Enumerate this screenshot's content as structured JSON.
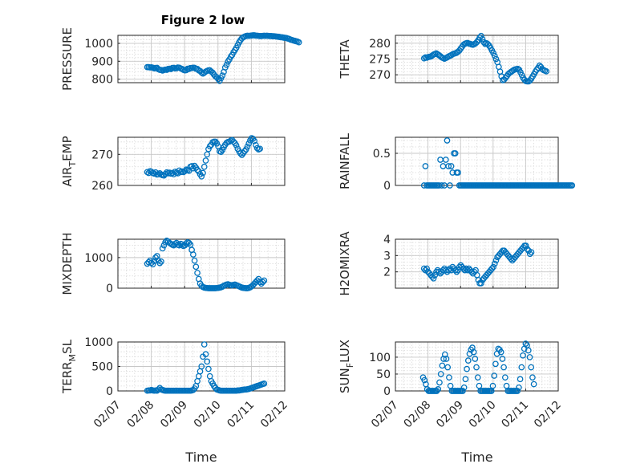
{
  "figure": {
    "title": "Figure 2 low",
    "xlabel": "Time",
    "x_ticks": [
      "02/07",
      "02/08",
      "02/09",
      "02/10",
      "02/11",
      "02/12"
    ],
    "marker_color": "#0072BD"
  },
  "chart_data": [
    {
      "type": "scatter",
      "name": "PRESSURE",
      "ylabel_main": "PRESSURE",
      "ylabel_sub": "",
      "ylim": [
        780,
        1045
      ],
      "yticks": [
        800,
        900,
        1000
      ],
      "grid": true,
      "minor_grid": true,
      "x_start_day": 0.88,
      "x_step_day": 0.0417,
      "values": [
        867,
        867,
        865,
        866,
        864,
        860,
        862,
        863,
        855,
        852,
        851,
        848,
        851,
        853,
        852,
        857,
        858,
        856,
        862,
        863,
        860,
        861,
        865,
        864,
        860,
        857,
        852,
        849,
        850,
        858,
        857,
        862,
        862,
        864,
        863,
        858,
        857,
        849,
        845,
        837,
        831,
        836,
        842,
        846,
        849,
        849,
        842,
        836,
        825,
        815,
        810,
        800,
        790,
        805,
        820,
        840,
        865,
        880,
        898,
        910,
        925,
        935,
        950,
        962,
        975,
        990,
        1005,
        1018,
        1028,
        1034,
        1038,
        1041,
        1043,
        1042,
        1043,
        1044,
        1045,
        1045,
        1043,
        1043,
        1042,
        1041,
        1041,
        1042,
        1043,
        1042,
        1043,
        1042,
        1041,
        1041,
        1040,
        1040,
        1039,
        1038,
        1037,
        1036,
        1034,
        1034,
        1032,
        1031,
        1030,
        1027,
        1025,
        1021,
        1019,
        1016,
        1014,
        1012,
        1010,
        1006
      ]
    },
    {
      "type": "scatter",
      "name": "THETA",
      "ylabel_main": "THETA",
      "ylabel_sub": "",
      "ylim": [
        267.5,
        282.5
      ],
      "yticks": [
        270,
        275,
        280
      ],
      "grid": true,
      "minor_grid": true,
      "x_start_day": 0.88,
      "x_step_day": 0.0417,
      "values": [
        275.2,
        275.5,
        275.4,
        275.6,
        275.7,
        275.8,
        276.1,
        276.4,
        276.6,
        276.8,
        276.5,
        276.2,
        275.9,
        275.5,
        275.3,
        275.1,
        275.3,
        275.5,
        275.8,
        276.0,
        276.2,
        276.5,
        276.7,
        276.8,
        277.0,
        277.3,
        277.7,
        278.3,
        278.9,
        279.5,
        279.8,
        280.0,
        280.1,
        279.9,
        279.8,
        279.6,
        279.5,
        279.7,
        280.0,
        280.4,
        281.0,
        281.8,
        282.3,
        281.3,
        280.3,
        279.8,
        280.0,
        279.7,
        279.2,
        278.5,
        277.7,
        276.9,
        276.0,
        275.0,
        274.0,
        272.5,
        271.0,
        269.5,
        268.3,
        268.5,
        269.0,
        269.6,
        270.2,
        270.6,
        270.9,
        271.2,
        271.5,
        271.7,
        271.8,
        271.9,
        271.6,
        270.8,
        269.9,
        269.0,
        268.4,
        268.0,
        267.9,
        267.9,
        268.2,
        268.8,
        269.5,
        270.2,
        271.0,
        271.6,
        272.2,
        272.9,
        272.5,
        271.8,
        271.5,
        271.3,
        271.1
      ]
    },
    {
      "type": "scatter",
      "name": "AIR_TEMP",
      "ylabel_main": "AIR",
      "ylabel_sub": "T",
      "ylabel_rest": "EMP",
      "ylim": [
        260,
        275.5
      ],
      "yticks": [
        260,
        270
      ],
      "grid": true,
      "minor_grid": true,
      "x_start_day": 0.88,
      "x_step_day": 0.0417,
      "values": [
        264.3,
        264.0,
        264.6,
        264.4,
        264.0,
        263.8,
        264.2,
        263.5,
        263.6,
        263.9,
        263.5,
        263.3,
        263.2,
        263.7,
        264.2,
        263.9,
        264.1,
        263.8,
        264.0,
        263.6,
        264.4,
        264.1,
        263.9,
        264.8,
        264.3,
        264.5,
        264.3,
        264.6,
        265.1,
        264.9,
        264.7,
        266.0,
        266.2,
        265.5,
        266.3,
        265.7,
        265.0,
        264.5,
        263.6,
        262.9,
        264.0,
        266.0,
        268.0,
        270.0,
        271.7,
        272.6,
        273.1,
        273.9,
        274.1,
        274.1,
        273.5,
        272.6,
        271.0,
        270.8,
        271.4,
        272.3,
        273.1,
        273.7,
        274.0,
        274.1,
        274.4,
        274.6,
        274.1,
        273.6,
        272.9,
        271.8,
        271.0,
        270.3,
        269.8,
        270.4,
        271.0,
        271.6,
        272.5,
        273.5,
        274.5,
        275.2,
        275.0,
        274.3,
        273.0,
        272.0,
        271.6,
        271.8
      ]
    },
    {
      "type": "scatter",
      "name": "RAINFALL",
      "ylabel_main": "RAINFALL",
      "ylabel_sub": "",
      "ylim": [
        0,
        0.75
      ],
      "yticks": [
        0,
        0.5
      ],
      "grid": true,
      "minor_grid": true,
      "x_start_day": 0.88,
      "x_step_day": 0.0417,
      "values": [
        0,
        0.3,
        0,
        0,
        0,
        0,
        0,
        0,
        0,
        0,
        0,
        0,
        0.4,
        0,
        0.3,
        0,
        0.4,
        0.7,
        0.3,
        0,
        0.3,
        0.2,
        0.5,
        0.5,
        0.2,
        0.2,
        0,
        0,
        0,
        0,
        0,
        0,
        0,
        0,
        0,
        0,
        0,
        0,
        0,
        0,
        0,
        0,
        0,
        0,
        0,
        0,
        0,
        0,
        0,
        0,
        0,
        0,
        0,
        0,
        0,
        0,
        0,
        0,
        0,
        0,
        0,
        0,
        0,
        0,
        0,
        0,
        0,
        0,
        0,
        0,
        0,
        0,
        0,
        0,
        0,
        0,
        0,
        0,
        0,
        0,
        0,
        0,
        0,
        0,
        0,
        0,
        0,
        0,
        0,
        0,
        0,
        0,
        0,
        0,
        0,
        0,
        0,
        0,
        0,
        0,
        0,
        0,
        0,
        0,
        0,
        0,
        0,
        0,
        0,
        0
      ]
    },
    {
      "type": "scatter",
      "name": "MIXDEPTH",
      "ylabel_main": "MIXDEPTH",
      "ylabel_sub": "",
      "ylim": [
        0,
        1600
      ],
      "yticks": [
        0,
        1000
      ],
      "grid": true,
      "minor_grid": true,
      "x_start_day": 0.88,
      "x_step_day": 0.0417,
      "values": [
        800,
        850,
        900,
        830,
        780,
        880,
        1000,
        1050,
        900,
        820,
        870,
        1300,
        1400,
        1500,
        1550,
        1520,
        1480,
        1450,
        1420,
        1400,
        1450,
        1480,
        1420,
        1400,
        1450,
        1430,
        1380,
        1400,
        1460,
        1500,
        1480,
        1420,
        1250,
        1100,
        900,
        700,
        500,
        300,
        150,
        80,
        40,
        20,
        10,
        5,
        0,
        0,
        0,
        0,
        0,
        0,
        5,
        10,
        20,
        30,
        50,
        80,
        100,
        120,
        130,
        110,
        100,
        90,
        110,
        120,
        100,
        80,
        60,
        40,
        20,
        10,
        5,
        0,
        0,
        10,
        30,
        60,
        100,
        150,
        200,
        250,
        300,
        200,
        150,
        200,
        250
      ]
    },
    {
      "type": "scatter",
      "name": "H2OMIXRA",
      "ylabel_main": "H2OMIXRA",
      "ylabel_sub": "",
      "ylim": [
        1,
        4
      ],
      "yticks": [
        2,
        3,
        4
      ],
      "grid": true,
      "minor_grid": true,
      "x_start_day": 0.88,
      "x_step_day": 0.0417,
      "values": [
        2.2,
        2.1,
        2.2,
        2.0,
        1.9,
        1.8,
        1.7,
        1.6,
        1.8,
        2.0,
        2.1,
        2.0,
        1.9,
        2.0,
        2.1,
        2.2,
        2.1,
        2.0,
        2.1,
        2.2,
        2.1,
        2.3,
        2.2,
        2.1,
        2.0,
        2.1,
        2.3,
        2.4,
        2.3,
        2.2,
        2.1,
        2.2,
        2.1,
        2.2,
        2.1,
        2.0,
        1.9,
        2.0,
        2.1,
        1.8,
        1.5,
        1.3,
        1.3,
        1.5,
        1.6,
        1.7,
        1.8,
        1.9,
        2.0,
        2.1,
        2.2,
        2.3,
        2.5,
        2.7,
        2.9,
        3.0,
        3.1,
        3.2,
        3.3,
        3.3,
        3.2,
        3.1,
        3.0,
        2.9,
        2.8,
        2.7,
        2.8,
        2.9,
        3.0,
        3.1,
        3.2,
        3.3,
        3.4,
        3.5,
        3.6,
        3.6,
        3.4,
        3.3,
        3.1,
        3.2
      ]
    },
    {
      "type": "scatter",
      "name": "TERR_MSL",
      "ylabel_main": "TERR",
      "ylabel_sub": "M",
      "ylabel_rest": "SL",
      "ylim": [
        0,
        1000
      ],
      "yticks": [
        0,
        500,
        1000
      ],
      "grid": true,
      "minor_grid": true,
      "x_start_day": 0.88,
      "x_step_day": 0.0417,
      "values": [
        5,
        10,
        10,
        20,
        10,
        5,
        10,
        5,
        30,
        60,
        30,
        20,
        10,
        5,
        5,
        5,
        5,
        5,
        5,
        5,
        5,
        5,
        5,
        5,
        5,
        5,
        5,
        5,
        5,
        5,
        5,
        5,
        10,
        20,
        50,
        100,
        200,
        300,
        400,
        500,
        700,
        950,
        750,
        600,
        450,
        300,
        200,
        150,
        100,
        60,
        30,
        20,
        10,
        5,
        5,
        5,
        5,
        5,
        5,
        5,
        5,
        5,
        5,
        5,
        5,
        10,
        10,
        15,
        20,
        25,
        30,
        30,
        35,
        40,
        50,
        60,
        70,
        80,
        90,
        100,
        110,
        120,
        130,
        140,
        150
      ]
    },
    {
      "type": "scatter",
      "name": "SUN_FLUX",
      "ylabel_main": "SUN",
      "ylabel_sub": "F",
      "ylabel_rest": "LUX",
      "ylim": [
        0,
        145
      ],
      "yticks": [
        0,
        50,
        100
      ],
      "grid": true,
      "minor_grid": true,
      "x_start_day": 0.85,
      "x_step_day": 0.042,
      "values": [
        40,
        32,
        20,
        5,
        0,
        0,
        0,
        0,
        0,
        0,
        0,
        5,
        25,
        50,
        75,
        95,
        108,
        95,
        70,
        40,
        15,
        0,
        0,
        0,
        0,
        0,
        0,
        0,
        0,
        0,
        10,
        35,
        65,
        90,
        110,
        122,
        128,
        115,
        95,
        70,
        40,
        15,
        0,
        0,
        0,
        0,
        0,
        0,
        0,
        0,
        0,
        15,
        45,
        80,
        110,
        125,
        122,
        115,
        95,
        70,
        40,
        15,
        0,
        0,
        0,
        0,
        0,
        0,
        0,
        0,
        10,
        35,
        70,
        105,
        125,
        140,
        135,
        120,
        100,
        70,
        40,
        20
      ]
    }
  ]
}
